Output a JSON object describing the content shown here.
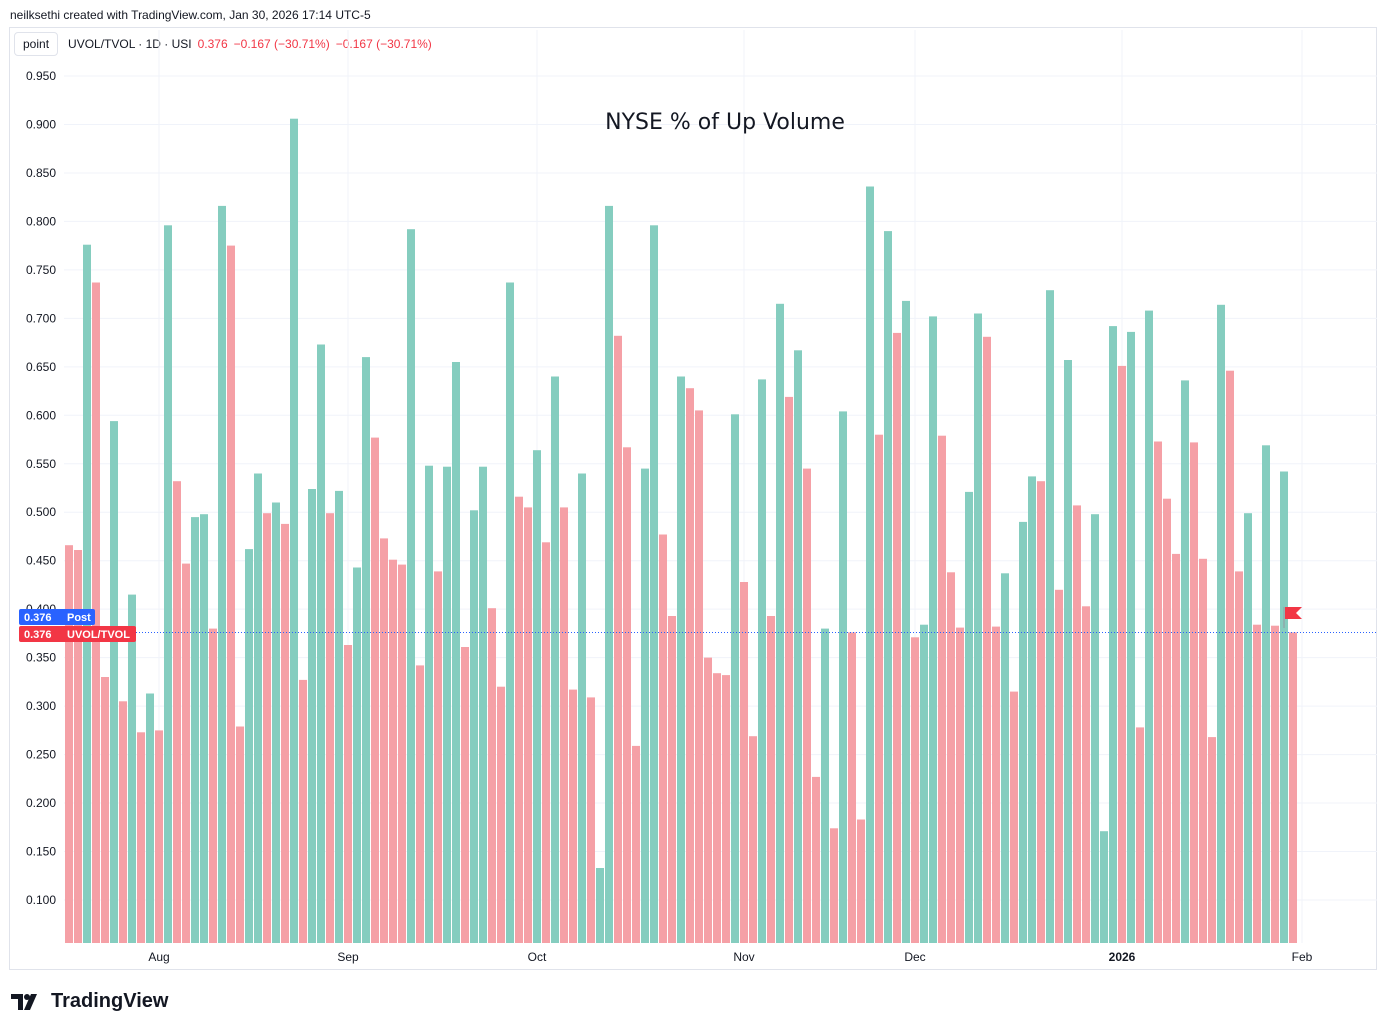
{
  "caption": "neilksethi created with TradingView.com, Jan 30, 2026 17:14 UTC-5",
  "legend": {
    "mode_button": "point",
    "symbol": "UVOL/TVOL · 1D · USI",
    "last": "0.376",
    "change": "−0.167 (−30.71%)",
    "change2": "−0.167 (−30.71%)"
  },
  "price_labels": {
    "post_value": "0.376",
    "post_name": "Post",
    "series_value": "0.376",
    "series_name": "UVOL/TVOL"
  },
  "brand": "TradingView",
  "colors": {
    "up": "#85cdbf",
    "down": "#f5a0a6",
    "post_badge": "#2962ff",
    "series_badge": "#f23645"
  },
  "chart_data": {
    "type": "bar",
    "title": "NYSE % of Up Volume",
    "ylim": [
      0.05,
      0.97
    ],
    "yticks": [
      "0.100",
      "0.150",
      "0.200",
      "0.250",
      "0.300",
      "0.350",
      "0.400",
      "0.450",
      "0.500",
      "0.550",
      "0.600",
      "0.650",
      "0.700",
      "0.750",
      "0.800",
      "0.850",
      "0.900",
      "0.950"
    ],
    "month_ticks": [
      {
        "label": "Aug",
        "index": 10,
        "bold": false
      },
      {
        "label": "Sep",
        "index": 31,
        "bold": false
      },
      {
        "label": "Oct",
        "index": 52,
        "bold": false
      },
      {
        "label": "Nov",
        "index": 75,
        "bold": false
      },
      {
        "label": "Dec",
        "index": 94,
        "bold": false
      },
      {
        "label": "2026",
        "index": 117,
        "bold": true
      },
      {
        "label": "Feb",
        "index": 137,
        "bold": false
      }
    ],
    "values": [
      0.466,
      0.461,
      0.776,
      0.737,
      0.33,
      0.594,
      0.305,
      0.415,
      0.273,
      0.313,
      0.275,
      0.796,
      0.532,
      0.447,
      0.495,
      0.498,
      0.38,
      0.816,
      0.775,
      0.279,
      0.462,
      0.54,
      0.499,
      0.51,
      0.488,
      0.906,
      0.327,
      0.524,
      0.673,
      0.499,
      0.522,
      0.363,
      0.443,
      0.66,
      0.577,
      0.473,
      0.451,
      0.446,
      0.792,
      0.342,
      0.548,
      0.439,
      0.547,
      0.655,
      0.361,
      0.502,
      0.547,
      0.401,
      0.32,
      0.737,
      0.516,
      0.505,
      0.564,
      0.469,
      0.64,
      0.505,
      0.317,
      0.54,
      0.309,
      0.133,
      0.816,
      0.682,
      0.567,
      0.259,
      0.545,
      0.796,
      0.477,
      0.393,
      0.64,
      0.628,
      0.605,
      0.35,
      0.334,
      0.332,
      0.601,
      0.428,
      0.269,
      0.637,
      0.393,
      0.715,
      0.619,
      0.667,
      0.545,
      0.227,
      0.38,
      0.174,
      0.604,
      0.376,
      0.183,
      0.836,
      0.58,
      0.79,
      0.685,
      0.718,
      0.371,
      0.384,
      0.702,
      0.579,
      0.438,
      0.381,
      0.521,
      0.705,
      0.681,
      0.382,
      0.437,
      0.315,
      0.49,
      0.537,
      0.532,
      0.729,
      0.42,
      0.657,
      0.507,
      0.403,
      0.498,
      0.171,
      0.692,
      0.651,
      0.686,
      0.278,
      0.708,
      0.573,
      0.514,
      0.457,
      0.636,
      0.572,
      0.452,
      0.268,
      0.714,
      0.646,
      0.439,
      0.499,
      0.384,
      0.569,
      0.383,
      0.542,
      0.376
    ],
    "direction": [
      "d",
      "d",
      "u",
      "d",
      "d",
      "u",
      "d",
      "u",
      "d",
      "u",
      "d",
      "u",
      "d",
      "d",
      "u",
      "u",
      "d",
      "u",
      "d",
      "d",
      "u",
      "u",
      "d",
      "u",
      "d",
      "u",
      "d",
      "u",
      "u",
      "d",
      "u",
      "d",
      "u",
      "u",
      "d",
      "d",
      "d",
      "d",
      "u",
      "d",
      "u",
      "d",
      "u",
      "u",
      "d",
      "u",
      "u",
      "d",
      "d",
      "u",
      "d",
      "d",
      "u",
      "d",
      "u",
      "d",
      "d",
      "u",
      "d",
      "u",
      "u",
      "d",
      "d",
      "d",
      "u",
      "u",
      "d",
      "d",
      "u",
      "d",
      "d",
      "d",
      "d",
      "d",
      "u",
      "d",
      "d",
      "u",
      "d",
      "u",
      "d",
      "u",
      "d",
      "d",
      "u",
      "d",
      "u",
      "d",
      "d",
      "u",
      "d",
      "u",
      "d",
      "u",
      "d",
      "u",
      "u",
      "d",
      "d",
      "d",
      "u",
      "u",
      "d",
      "d",
      "u",
      "d",
      "u",
      "u",
      "d",
      "u",
      "d",
      "u",
      "d",
      "d",
      "u",
      "u",
      "u",
      "d",
      "u",
      "d",
      "u",
      "d",
      "d",
      "d",
      "u",
      "d",
      "d",
      "d",
      "u",
      "d",
      "d",
      "u",
      "d",
      "u",
      "d",
      "u",
      "d"
    ],
    "last_value": 0.376
  }
}
